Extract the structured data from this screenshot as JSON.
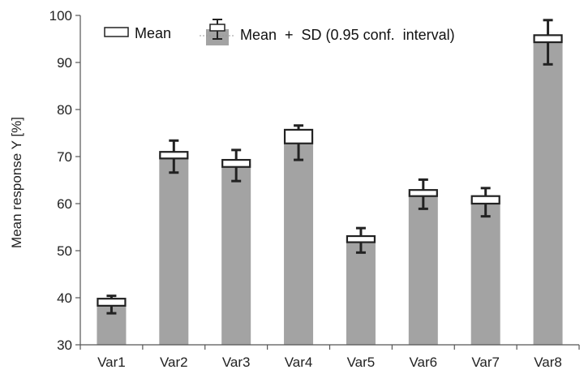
{
  "chart_data": {
    "type": "bar",
    "title": "",
    "xlabel": "",
    "ylabel": "Mean response Y [%]",
    "ylim": [
      30,
      100
    ],
    "yticks": [
      30,
      40,
      50,
      60,
      70,
      80,
      90,
      100
    ],
    "grid": false,
    "legend_position": "top",
    "legend": {
      "mean_label": "Mean",
      "sd_label": "Mean  +  SD (0.95 conf.  interval)"
    },
    "categories": [
      "Var1",
      "Var2",
      "Var3",
      "Var4",
      "Var5",
      "Var6",
      "Var7",
      "Var8"
    ],
    "values": [
      39,
      70.5,
      68.5,
      74.2,
      52.5,
      62.2,
      60.8,
      95
    ],
    "mean_box": [
      [
        38.3,
        39.8
      ],
      [
        69.6,
        71.0
      ],
      [
        67.8,
        69.3
      ],
      [
        72.8,
        75.7
      ],
      [
        51.8,
        53.1
      ],
      [
        61.6,
        62.9
      ],
      [
        60.0,
        61.6
      ],
      [
        94.3,
        95.8
      ]
    ],
    "sd_interval": [
      [
        36.7,
        40.4
      ],
      [
        66.6,
        73.4
      ],
      [
        64.8,
        71.4
      ],
      [
        69.3,
        76.6
      ],
      [
        49.6,
        54.8
      ],
      [
        58.9,
        65.1
      ],
      [
        57.3,
        63.3
      ],
      [
        89.6,
        99.0
      ]
    ],
    "colors": {
      "bar": "#a3a3a3",
      "whisker": "#222222",
      "box_fill": "#ffffff",
      "box_stroke": "#222222",
      "axis": "#555555"
    }
  }
}
